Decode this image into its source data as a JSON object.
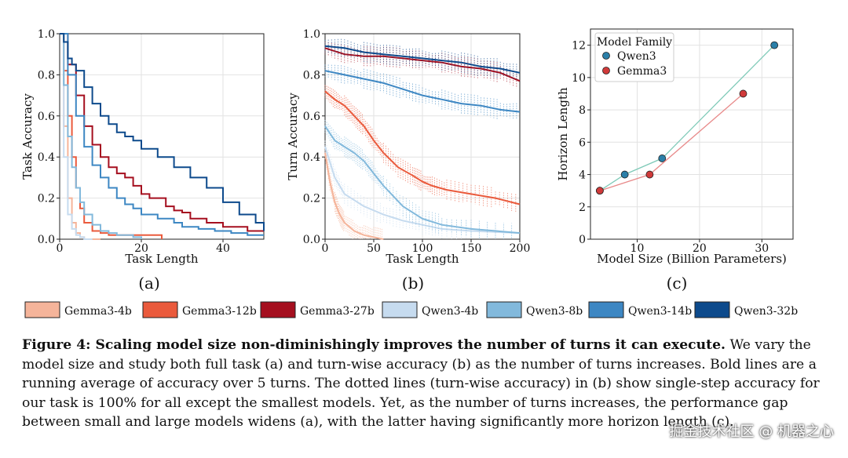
{
  "chart_data": [
    {
      "type": "line",
      "panel_label": "(a)",
      "xlabel": "Task Length",
      "ylabel": "Task Accuracy",
      "xlim": [
        0,
        50
      ],
      "ylim": [
        0,
        1.0
      ],
      "xticks": [
        0,
        20,
        40
      ],
      "yticks": [
        0.0,
        0.2,
        0.4,
        0.6,
        0.8,
        1.0
      ],
      "grid": true,
      "series": [
        {
          "name": "Gemma3-4b",
          "x": [
            0,
            1,
            2,
            3,
            4,
            5,
            6,
            8,
            10
          ],
          "y": [
            1.0,
            0.55,
            0.2,
            0.08,
            0.03,
            0.01,
            0,
            0,
            0
          ]
        },
        {
          "name": "Gemma3-12b",
          "x": [
            0,
            1,
            2,
            3,
            4,
            5,
            6,
            8,
            10,
            12,
            14,
            20,
            25
          ],
          "y": [
            1.0,
            0.82,
            0.6,
            0.4,
            0.25,
            0.15,
            0.08,
            0.04,
            0.03,
            0.02,
            0.02,
            0.02,
            0
          ]
        },
        {
          "name": "Gemma3-27b",
          "x": [
            0,
            2,
            4,
            6,
            8,
            10,
            12,
            14,
            16,
            18,
            20,
            22,
            26,
            28,
            30,
            32,
            36,
            40,
            44,
            46,
            50
          ],
          "y": [
            1.0,
            0.85,
            0.7,
            0.55,
            0.46,
            0.4,
            0.35,
            0.32,
            0.3,
            0.26,
            0.22,
            0.2,
            0.16,
            0.14,
            0.13,
            0.1,
            0.08,
            0.06,
            0.06,
            0.04,
            0.04
          ]
        },
        {
          "name": "Qwen3-4b",
          "x": [
            0,
            1,
            2,
            3,
            4,
            5,
            6,
            8
          ],
          "y": [
            1.0,
            0.4,
            0.12,
            0.05,
            0.02,
            0.01,
            0,
            0
          ]
        },
        {
          "name": "Qwen3-8b",
          "x": [
            0,
            1,
            2,
            3,
            4,
            5,
            6,
            8,
            10,
            12,
            14,
            18,
            20
          ],
          "y": [
            1.0,
            0.75,
            0.5,
            0.35,
            0.25,
            0.18,
            0.12,
            0.07,
            0.04,
            0.03,
            0.02,
            0.01,
            0
          ]
        },
        {
          "name": "Qwen3-14b",
          "x": [
            0,
            2,
            4,
            6,
            8,
            10,
            12,
            14,
            16,
            18,
            20,
            24,
            28,
            30,
            34,
            38,
            42,
            46,
            50
          ],
          "y": [
            1.0,
            0.8,
            0.6,
            0.45,
            0.36,
            0.3,
            0.25,
            0.2,
            0.17,
            0.15,
            0.12,
            0.1,
            0.08,
            0.06,
            0.05,
            0.04,
            0.03,
            0.02,
            0.02
          ]
        },
        {
          "name": "Qwen3-32b",
          "x": [
            0,
            1,
            2,
            3,
            4,
            6,
            8,
            10,
            12,
            14,
            16,
            18,
            20,
            24,
            28,
            32,
            36,
            40,
            44,
            48,
            50
          ],
          "y": [
            1.0,
            0.96,
            0.88,
            0.85,
            0.82,
            0.74,
            0.66,
            0.6,
            0.56,
            0.52,
            0.5,
            0.48,
            0.44,
            0.4,
            0.35,
            0.3,
            0.25,
            0.18,
            0.12,
            0.08,
            0.04
          ]
        }
      ]
    },
    {
      "type": "line",
      "panel_label": "(b)",
      "xlabel": "Task Length",
      "ylabel": "Turn Accuracy",
      "xlim": [
        0,
        200
      ],
      "ylim": [
        0,
        1.0
      ],
      "xticks": [
        0,
        50,
        100,
        150,
        200
      ],
      "yticks": [
        0.0,
        0.2,
        0.4,
        0.6,
        0.8,
        1.0
      ],
      "grid": true,
      "series": [
        {
          "name": "Gemma3-4b",
          "x": [
            0,
            5,
            10,
            15,
            20,
            30,
            40,
            50,
            60
          ],
          "y": [
            0.42,
            0.28,
            0.18,
            0.12,
            0.08,
            0.04,
            0.02,
            0.01,
            0
          ]
        },
        {
          "name": "Gemma3-12b",
          "x": [
            0,
            10,
            20,
            30,
            40,
            50,
            60,
            75,
            90,
            100,
            110,
            125,
            150,
            175,
            200
          ],
          "y": [
            0.72,
            0.68,
            0.65,
            0.6,
            0.55,
            0.48,
            0.42,
            0.35,
            0.31,
            0.28,
            0.26,
            0.24,
            0.22,
            0.2,
            0.17
          ]
        },
        {
          "name": "Gemma3-27b",
          "x": [
            0,
            20,
            40,
            60,
            80,
            100,
            120,
            140,
            160,
            180,
            200
          ],
          "y": [
            0.93,
            0.9,
            0.89,
            0.89,
            0.88,
            0.87,
            0.86,
            0.84,
            0.83,
            0.81,
            0.77
          ]
        },
        {
          "name": "Qwen3-4b",
          "x": [
            0,
            10,
            20,
            40,
            60,
            80,
            100,
            120,
            150,
            200
          ],
          "y": [
            0.45,
            0.3,
            0.22,
            0.16,
            0.12,
            0.09,
            0.07,
            0.05,
            0.04,
            0.03
          ]
        },
        {
          "name": "Qwen3-8b",
          "x": [
            0,
            10,
            20,
            30,
            40,
            50,
            60,
            80,
            100,
            120,
            150,
            200
          ],
          "y": [
            0.55,
            0.48,
            0.45,
            0.42,
            0.38,
            0.32,
            0.26,
            0.16,
            0.1,
            0.07,
            0.05,
            0.03
          ]
        },
        {
          "name": "Qwen3-14b",
          "x": [
            0,
            20,
            40,
            60,
            80,
            100,
            120,
            140,
            160,
            180,
            200
          ],
          "y": [
            0.82,
            0.8,
            0.78,
            0.76,
            0.73,
            0.7,
            0.68,
            0.66,
            0.65,
            0.63,
            0.62
          ]
        },
        {
          "name": "Qwen3-32b",
          "x": [
            0,
            20,
            40,
            60,
            80,
            100,
            120,
            140,
            160,
            180,
            200
          ],
          "y": [
            0.94,
            0.93,
            0.91,
            0.9,
            0.89,
            0.88,
            0.87,
            0.86,
            0.84,
            0.83,
            0.81
          ]
        }
      ]
    },
    {
      "type": "scatter",
      "panel_label": "(c)",
      "xlabel": "Model Size (Billion Parameters)",
      "ylabel": "Horizon Length",
      "xlim": [
        2.5,
        35
      ],
      "ylim": [
        0,
        13
      ],
      "xticks": [
        10,
        20,
        30
      ],
      "yticks": [
        0,
        2,
        4,
        6,
        8,
        10,
        12
      ],
      "grid": true,
      "legend_title": "Model Family",
      "legend_placement": "top-left",
      "series": [
        {
          "name": "Qwen3",
          "color": "#2a7fa8",
          "x": [
            4,
            8,
            14,
            32
          ],
          "y": [
            3,
            4,
            5,
            12
          ]
        },
        {
          "name": "Gemma3",
          "color": "#d03a3a",
          "x": [
            4,
            12,
            27
          ],
          "y": [
            3,
            4,
            9
          ]
        }
      ]
    }
  ],
  "legend": [
    {
      "name": "Gemma3-4b",
      "color": "#f5b49a"
    },
    {
      "name": "Gemma3-12b",
      "color": "#ea5a3c"
    },
    {
      "name": "Gemma3-27b",
      "color": "#a50f1f"
    },
    {
      "name": "Qwen3-4b",
      "color": "#c6dbef"
    },
    {
      "name": "Qwen3-8b",
      "color": "#82b9dc"
    },
    {
      "name": "Qwen3-14b",
      "color": "#3d87c3"
    },
    {
      "name": "Qwen3-32b",
      "color": "#0d4a8c"
    }
  ],
  "caption": {
    "bold": "Figure 4: Scaling model size non-diminishingly improves the number of turns it can execute.",
    "rest": " We vary the model size and study both full task (a) and turn-wise accuracy (b) as the number of turns increases. Bold lines are a running average of accuracy over 5 turns. The dotted lines (turn-wise accuracy) in (b) show single-step accuracy for our task is 100% for all except the smallest models. Yet, as the number of turns increases, the performance gap between small and large models widens (a), with the latter having significantly more horizon length (c)."
  },
  "watermark": "掘金技术社区 @ 机器之心"
}
